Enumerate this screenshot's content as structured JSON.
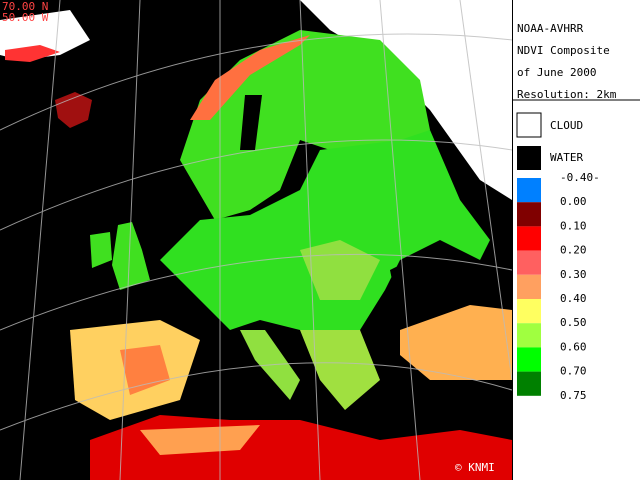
{
  "header": {
    "coords": [
      "70.00 N",
      "50.00 W"
    ],
    "info": [
      "NOAA-AVHRR",
      "NDVI Composite",
      "of June 2000",
      "Resolution: 2km"
    ]
  },
  "legend": {
    "cloud": {
      "label": "CLOUD",
      "color": "#ffffff"
    },
    "water": {
      "label": "WATER",
      "color": "#000000"
    },
    "scale": {
      "colors": [
        "#0080ff",
        "#800000",
        "#ff0000",
        "#ff6060",
        "#ffa060",
        "#ffff60",
        "#a0ff40",
        "#00ff00",
        "#008000"
      ],
      "labels": [
        "-0.40-",
        "0.00",
        "0.10",
        "0.20",
        "0.30",
        "0.40",
        "0.50",
        "0.60",
        "0.70",
        "0.75"
      ]
    }
  },
  "credit": "© KNMI"
}
